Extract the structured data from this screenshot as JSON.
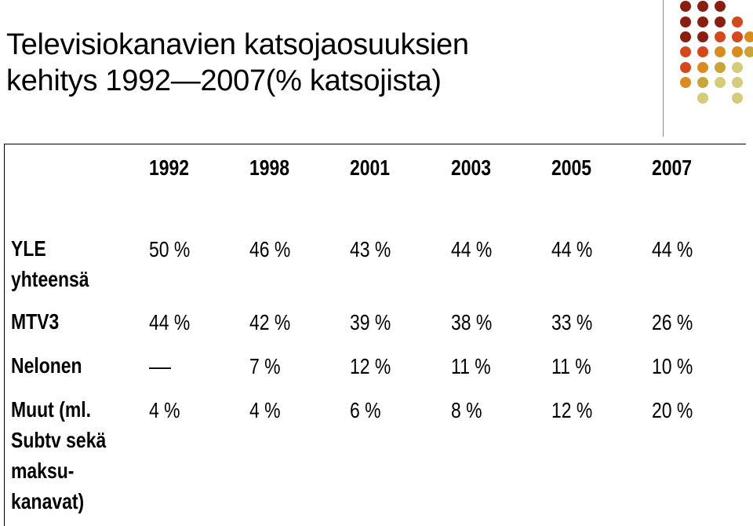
{
  "title": {
    "line1": "Televisiokanavien katsojaosuuksien",
    "line2": "kehitys 1992—2007(% katsojista)"
  },
  "colors": {
    "dark_red": "#8b1e0f",
    "orange_red": "#d6471b",
    "amber": "#d98c1c",
    "mustard": "#c9a437",
    "olive_light": "#d3cc78"
  },
  "table": {
    "years": [
      "1992",
      "1998",
      "2001",
      "2003",
      "2005",
      "2007"
    ],
    "rows": [
      {
        "label_lines": [
          "YLE",
          "yhteensä"
        ],
        "values": [
          "50 %",
          "46 %",
          "43 %",
          "44 %",
          "44 %",
          "44 %"
        ]
      },
      {
        "label_lines": [
          "MTV3"
        ],
        "values": [
          "44 %",
          "42 %",
          "39 %",
          "38 %",
          "33 %",
          "26 %"
        ]
      },
      {
        "label_lines": [
          "Nelonen"
        ],
        "values": [
          "—",
          "7 %",
          "12 %",
          "11 %",
          "11 %",
          "10 %"
        ]
      },
      {
        "label_lines": [
          "Muut (ml.",
          "Subtv sekä",
          "maksu-",
          "kanavat)"
        ],
        "values": [
          "4 %",
          "4 %",
          "6 %",
          "8 %",
          "12 %",
          "20 %"
        ]
      }
    ]
  }
}
